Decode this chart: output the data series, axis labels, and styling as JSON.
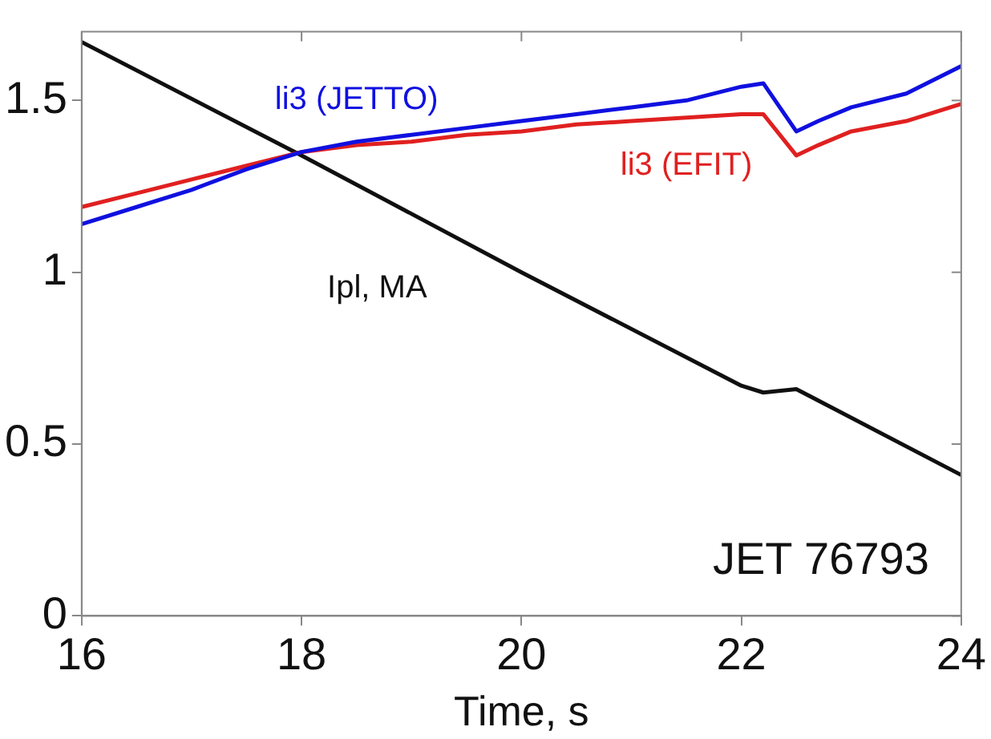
{
  "chart_data": {
    "type": "line",
    "xlabel": "Time, s",
    "xlim": [
      16,
      24
    ],
    "xticks": [
      16,
      18,
      20,
      22,
      24
    ],
    "ylim": [
      0,
      1.7
    ],
    "yticks": [
      0,
      0.5,
      1,
      1.5
    ],
    "grid": false,
    "legend": false,
    "marker": "none",
    "line_style": "solid",
    "series": [
      {
        "name": "li3 (JETTO)",
        "color": "#1010e0",
        "x": [
          16,
          16.5,
          17,
          17.5,
          18,
          18.5,
          19,
          19.5,
          20,
          20.5,
          21,
          21.5,
          22,
          22.2,
          22.5,
          22.7,
          23,
          23.5,
          24
        ],
        "values": [
          1.14,
          1.19,
          1.24,
          1.3,
          1.35,
          1.38,
          1.4,
          1.42,
          1.44,
          1.46,
          1.48,
          1.5,
          1.54,
          1.55,
          1.41,
          1.44,
          1.48,
          1.52,
          1.6
        ]
      },
      {
        "name": "li3 (EFIT)",
        "color": "#e02020",
        "x": [
          16,
          16.5,
          17,
          17.5,
          18,
          18.5,
          19,
          19.5,
          20,
          20.5,
          21,
          21.5,
          22,
          22.2,
          22.5,
          22.7,
          23,
          23.5,
          24
        ],
        "values": [
          1.19,
          1.23,
          1.27,
          1.31,
          1.35,
          1.37,
          1.38,
          1.4,
          1.41,
          1.43,
          1.44,
          1.45,
          1.46,
          1.46,
          1.34,
          1.37,
          1.41,
          1.44,
          1.49
        ]
      },
      {
        "name": "Ipl, MA",
        "color": "#101010",
        "x": [
          16,
          18,
          20,
          22,
          22.2,
          22.5,
          24
        ],
        "values": [
          1.67,
          1.34,
          1.0,
          0.67,
          0.65,
          0.66,
          0.41
        ]
      }
    ],
    "annotations": [
      "JET 76793"
    ]
  }
}
